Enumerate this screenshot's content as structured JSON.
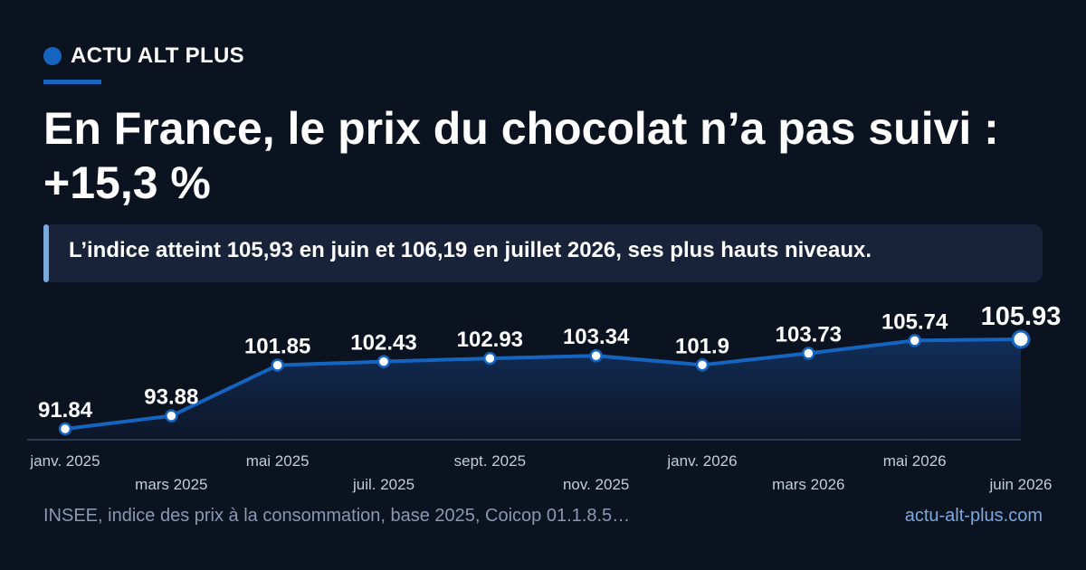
{
  "brand": {
    "name": "ACTU ALT PLUS",
    "color": "#1565c0"
  },
  "headline": "En France, le prix du chocolat n’a pas suivi : +15,3 %",
  "callout": "L’indice atteint 105,93 en juin et 106,19 en juillet 2026, ses plus hauts niveaux.",
  "footer": {
    "source": "INSEE, indice des prix à la consommation, base 2025, Coicop 01.1.8.5…",
    "site": "actu-alt-plus.com"
  },
  "colors": {
    "background": "#0b1220",
    "line": "#1565c0",
    "callout_bg": "#18233a",
    "callout_accent": "#7aa9e0",
    "muted_text": "#8a99b3"
  },
  "chart_data": {
    "type": "area",
    "title": "",
    "xlabel": "",
    "ylabel": "",
    "x": [
      "janv. 2025",
      "mars 2025",
      "mai 2025",
      "juil. 2025",
      "sept. 2025",
      "nov. 2025",
      "janv. 2026",
      "mars 2026",
      "mai 2026",
      "juin 2026"
    ],
    "values": [
      91.84,
      93.88,
      101.85,
      102.43,
      102.93,
      103.34,
      101.9,
      103.73,
      105.74,
      105.93
    ],
    "data_labels": [
      "91.84",
      "93.88",
      "101.85",
      "102.43",
      "102.93",
      "103.34",
      "101.9",
      "103.73",
      "105.74",
      "105.93"
    ],
    "highlight_last": true,
    "grid": false,
    "legend": "none"
  }
}
